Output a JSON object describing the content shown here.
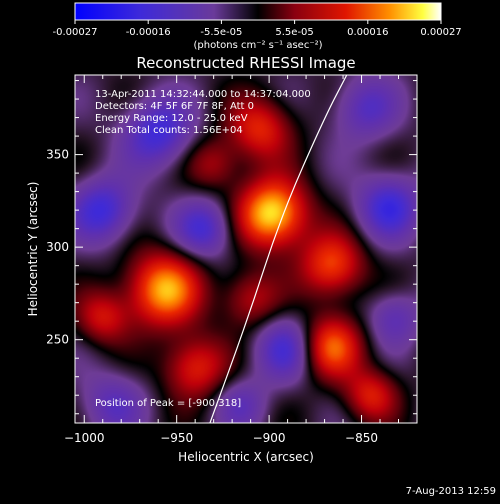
{
  "chart_data": {
    "type": "heatmap",
    "title": "Reconstructed RHESSI Image",
    "xlabel": "Heliocentric X (arcsec)",
    "ylabel": "Heliocentric Y (arcsec)",
    "xlim": [
      -1005,
      -820
    ],
    "ylim": [
      205,
      393
    ],
    "x_ticks": [
      -1000,
      -950,
      -900,
      -850
    ],
    "y_ticks": [
      250,
      300,
      350
    ],
    "colorbar": {
      "ticks": [
        "-0.00027",
        "-0.00016",
        "-5.5e-05",
        "5.5e-05",
        "0.00016",
        "0.00027"
      ],
      "unit_label": "(photons cm⁻² s⁻¹ asec⁻²)",
      "range": [
        -0.00027,
        0.00027
      ]
    },
    "annotations": [
      "13-Apr-2011 14:32:44.000 to 14:37:04.000",
      "Detectors: 4F 5F 6F 7F 8F, Att 0",
      "Energy Range: 12.0 - 25.0 keV",
      "Clean     Total counts: 1.56E+04"
    ],
    "peak_text": "Position of Peak = [-900,318]",
    "peak": [
      -900,
      318
    ],
    "blobs": [
      {
        "x": -898,
        "y": 318,
        "amp": 1.0,
        "s": 13
      },
      {
        "x": -957,
        "y": 277,
        "amp": 0.85,
        "s": 14
      },
      {
        "x": -866,
        "y": 290,
        "amp": 0.65,
        "s": 12
      },
      {
        "x": -905,
        "y": 364,
        "amp": 0.55,
        "s": 12
      },
      {
        "x": -867,
        "y": 246,
        "amp": 0.7,
        "s": 12
      },
      {
        "x": -940,
        "y": 235,
        "amp": 0.55,
        "s": 12
      },
      {
        "x": -990,
        "y": 262,
        "amp": 0.45,
        "s": 10
      },
      {
        "x": -910,
        "y": 272,
        "amp": 0.4,
        "s": 11
      },
      {
        "x": -930,
        "y": 345,
        "amp": 0.35,
        "s": 10
      },
      {
        "x": -845,
        "y": 220,
        "amp": 0.5,
        "s": 10
      },
      {
        "x": -960,
        "y": 362,
        "amp": -0.55,
        "s": 13
      },
      {
        "x": -990,
        "y": 320,
        "amp": -0.55,
        "s": 12
      },
      {
        "x": -935,
        "y": 310,
        "amp": -0.5,
        "s": 11
      },
      {
        "x": -890,
        "y": 245,
        "amp": -0.5,
        "s": 12
      },
      {
        "x": -835,
        "y": 322,
        "amp": -0.55,
        "s": 12
      },
      {
        "x": -848,
        "y": 375,
        "amp": -0.4,
        "s": 12
      },
      {
        "x": -985,
        "y": 215,
        "amp": -0.35,
        "s": 12
      },
      {
        "x": -915,
        "y": 215,
        "amp": -0.3,
        "s": 10
      },
      {
        "x": -832,
        "y": 262,
        "amp": -0.35,
        "s": 10
      }
    ],
    "limb_curve": [
      {
        "x": -932,
        "y": 205
      },
      {
        "x": -912,
        "y": 260
      },
      {
        "x": -893,
        "y": 318
      },
      {
        "x": -870,
        "y": 370
      },
      {
        "x": -858,
        "y": 393
      }
    ]
  },
  "footer": {
    "date": "7-Aug-2013 12:59"
  }
}
